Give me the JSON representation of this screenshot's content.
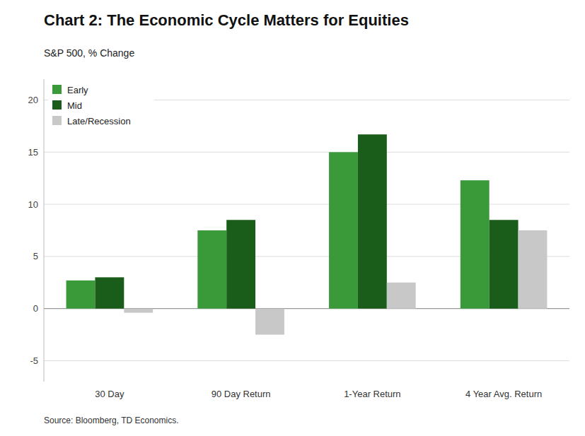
{
  "chart_data": {
    "type": "bar",
    "title": "Chart 2: The Economic Cycle Matters for Equities",
    "subtitle": "S&P 500, % Change",
    "source": "Source: Bloomberg, TD Economics.",
    "categories": [
      "30 Day",
      "90 Day Return",
      "1-Year Return",
      "4 Year Avg. Return"
    ],
    "series": [
      {
        "name": "Early",
        "color": "#3a9a3a",
        "values": [
          2.7,
          7.5,
          15.0,
          12.3
        ]
      },
      {
        "name": "Mid",
        "color": "#1a5c1a",
        "values": [
          3.0,
          8.5,
          16.7,
          8.5
        ]
      },
      {
        "name": "Late/Recession",
        "color": "#c8c8c8",
        "values": [
          -0.4,
          -2.5,
          2.5,
          7.5
        ]
      }
    ],
    "ylim": [
      -7,
      22
    ],
    "yticks": [
      -5,
      0,
      5,
      10,
      15,
      20
    ],
    "grid": true,
    "legend": "upper left"
  }
}
